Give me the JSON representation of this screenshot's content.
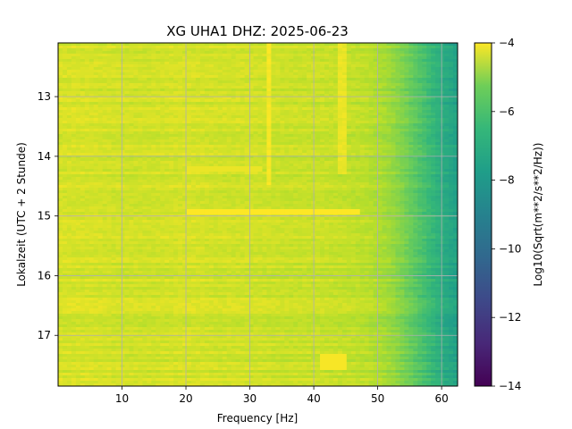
{
  "chart_data": {
    "type": "heatmap",
    "title": "XG UHA1  DHZ: 2025-06-23",
    "xlabel": "Frequency [Hz]",
    "ylabel": "Lokalzeit (UTC + 2 Stunde)",
    "colorbar_label": "Log10(Sqrt(m**2/s**2/Hz))",
    "xlim": [
      0,
      62.5
    ],
    "ylim": [
      12.1,
      17.85
    ],
    "y_inverted": true,
    "x_ticks": [
      10,
      20,
      30,
      40,
      50,
      60
    ],
    "x_tick_labels": [
      "10",
      "20",
      "30",
      "40",
      "50",
      "60"
    ],
    "y_ticks": [
      13,
      14,
      15,
      16,
      17
    ],
    "y_tick_labels": [
      "13",
      "14",
      "15",
      "16",
      "17"
    ],
    "color_range": [
      -14,
      -4
    ],
    "colorbar_ticks": [
      -4,
      -6,
      -8,
      -10,
      -12,
      -14
    ],
    "colorbar_tick_labels": [
      "−4",
      "−6",
      "−8",
      "−10",
      "−12",
      "−14"
    ],
    "colormap": "viridis",
    "grid": true,
    "frequency_profile": {
      "x": [
        0,
        5,
        10,
        15,
        20,
        25,
        30,
        35,
        40,
        45,
        48,
        50,
        52,
        54,
        56,
        58,
        60,
        62.5
      ],
      "values": [
        -4.6,
        -4.6,
        -4.7,
        -4.7,
        -4.6,
        -4.7,
        -4.7,
        -4.8,
        -4.8,
        -4.9,
        -5.0,
        -5.2,
        -5.5,
        -6.0,
        -6.6,
        -7.2,
        -7.8,
        -8.3
      ]
    },
    "features": [
      {
        "kind": "horizontal_band",
        "time": 14.93,
        "x_range": [
          20,
          47
        ],
        "value": -4.0
      },
      {
        "kind": "horizontal_band",
        "time": 14.2,
        "x_range": [
          20,
          32
        ],
        "value": -4.3
      },
      {
        "kind": "vertical_line",
        "x": 33,
        "time_range": [
          12.1,
          14.5
        ],
        "value": -4.1
      },
      {
        "kind": "vertical_line",
        "x": 44.5,
        "time_range": [
          12.1,
          14.3
        ],
        "value": -4.3
      },
      {
        "kind": "patch",
        "x_range": [
          41,
          45
        ],
        "time_range": [
          17.3,
          17.6
        ],
        "value": -4.1
      }
    ]
  }
}
